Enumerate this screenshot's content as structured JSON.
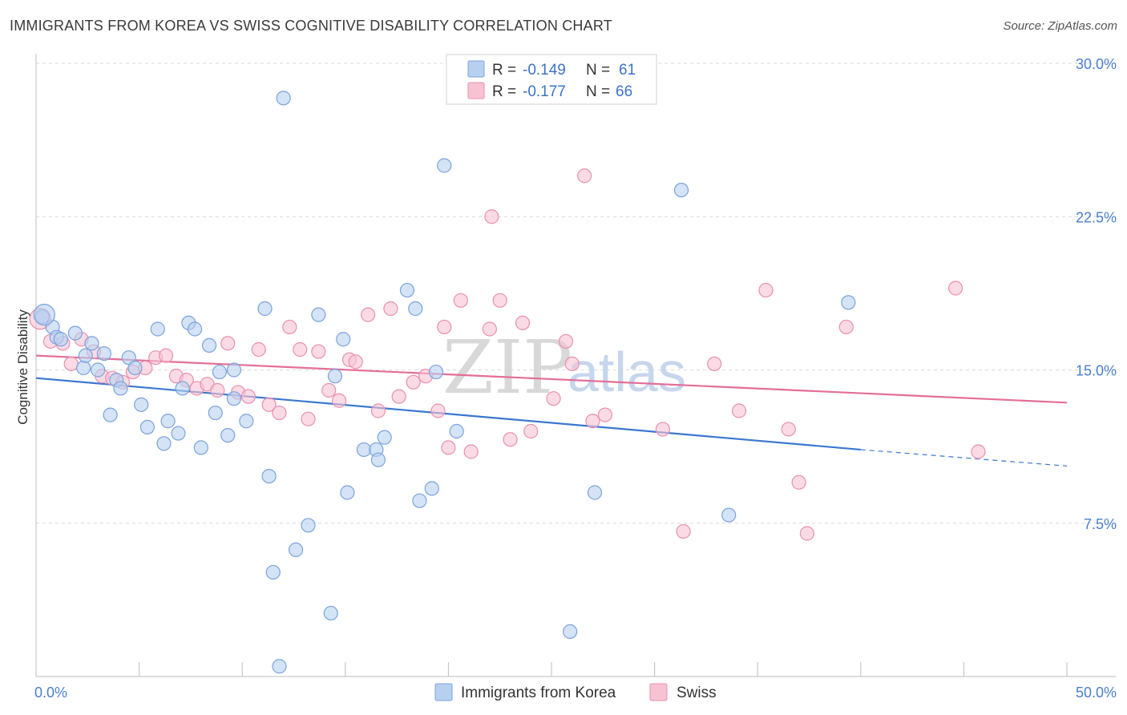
{
  "header": {
    "title": "IMMIGRANTS FROM KOREA VS SWISS COGNITIVE DISABILITY CORRELATION CHART",
    "source": "Source: ZipAtlas.com"
  },
  "watermark": {
    "zip": "ZIP",
    "atlas": "atlas"
  },
  "colors": {
    "blue_fill": "#b8d0f0",
    "blue_stroke": "#7aa3dc",
    "blue_line": "#3a78d0",
    "pink_fill": "#f7c3d3",
    "pink_stroke": "#ea8fae",
    "pink_line": "#e46e98",
    "axis_text": "#4a7fcf",
    "grid": "#d9d9d9"
  },
  "legend": {
    "rows": [
      {
        "r_label": "R = ",
        "r_value": "-0.149",
        "n_label": "N = ",
        "n_value": "61",
        "series": "korea"
      },
      {
        "r_label": "R = ",
        "r_value": "-0.177",
        "n_label": "N = ",
        "n_value": "66",
        "series": "swiss"
      }
    ]
  },
  "chart_data": {
    "type": "scatter",
    "title": "IMMIGRANTS FROM KOREA VS SWISS COGNITIVE DISABILITY CORRELATION CHART",
    "xlabel": "",
    "ylabel": "Cognitive Disability",
    "xlim": [
      0,
      50
    ],
    "ylim": [
      0,
      30
    ],
    "x_tick_labels": [
      "0.0%",
      "50.0%"
    ],
    "y_ticks": [
      7.5,
      15.0,
      22.5,
      30.0
    ],
    "y_tick_labels": [
      "7.5%",
      "15.0%",
      "22.5%",
      "30.0%"
    ],
    "grid": true,
    "legend_position": "top-center",
    "series": [
      {
        "name": "Immigrants from Korea",
        "key": "korea",
        "R": -0.149,
        "N": 61,
        "trend": {
          "x0": 0,
          "y0": 14.6,
          "x1": 40,
          "y1": 11.1,
          "dashed_to_x": 50,
          "dashed_to_y": 10.3
        },
        "points": [
          [
            0.3,
            17.6
          ],
          [
            0.8,
            17.1
          ],
          [
            1.0,
            16.6
          ],
          [
            1.9,
            16.8
          ],
          [
            1.2,
            16.5
          ],
          [
            2.3,
            15.1
          ],
          [
            2.4,
            15.7
          ],
          [
            2.7,
            16.3
          ],
          [
            3.0,
            15.0
          ],
          [
            3.3,
            15.8
          ],
          [
            3.6,
            12.8
          ],
          [
            3.9,
            14.5
          ],
          [
            4.1,
            14.1
          ],
          [
            4.5,
            15.6
          ],
          [
            4.8,
            15.1
          ],
          [
            5.1,
            13.3
          ],
          [
            5.4,
            12.2
          ],
          [
            5.9,
            17.0
          ],
          [
            6.2,
            11.4
          ],
          [
            6.4,
            12.5
          ],
          [
            6.9,
            11.9
          ],
          [
            7.1,
            14.1
          ],
          [
            7.4,
            17.3
          ],
          [
            7.7,
            17.0
          ],
          [
            8.0,
            11.2
          ],
          [
            8.4,
            16.2
          ],
          [
            8.7,
            12.9
          ],
          [
            8.9,
            14.9
          ],
          [
            9.3,
            11.8
          ],
          [
            9.6,
            13.6
          ],
          [
            9.6,
            15.0
          ],
          [
            10.2,
            12.5
          ],
          [
            11.1,
            18.0
          ],
          [
            11.3,
            9.8
          ],
          [
            11.5,
            5.1
          ],
          [
            11.8,
            0.5
          ],
          [
            12.0,
            28.3
          ],
          [
            12.6,
            6.2
          ],
          [
            13.2,
            7.4
          ],
          [
            13.7,
            17.7
          ],
          [
            14.3,
            3.1
          ],
          [
            14.5,
            14.7
          ],
          [
            14.9,
            16.5
          ],
          [
            15.1,
            9.0
          ],
          [
            15.9,
            11.1
          ],
          [
            16.5,
            11.1
          ],
          [
            16.6,
            10.6
          ],
          [
            16.9,
            11.7
          ],
          [
            18.0,
            18.9
          ],
          [
            18.4,
            18.0
          ],
          [
            18.6,
            8.6
          ],
          [
            19.2,
            9.2
          ],
          [
            19.4,
            14.9
          ],
          [
            19.8,
            25.0
          ],
          [
            20.4,
            12.0
          ],
          [
            25.9,
            2.2
          ],
          [
            27.1,
            9.0
          ],
          [
            31.3,
            23.8
          ],
          [
            33.6,
            7.9
          ],
          [
            39.4,
            18.3
          ],
          [
            0.4,
            17.7
          ]
        ]
      },
      {
        "name": "Swiss",
        "key": "swiss",
        "R": -0.177,
        "N": 66,
        "trend": {
          "x0": 0,
          "y0": 15.7,
          "x1": 50,
          "y1": 13.4
        },
        "points": [
          [
            0.2,
            17.5
          ],
          [
            0.7,
            16.4
          ],
          [
            1.3,
            16.3
          ],
          [
            1.7,
            15.3
          ],
          [
            2.2,
            16.5
          ],
          [
            2.8,
            15.9
          ],
          [
            3.2,
            14.7
          ],
          [
            3.7,
            14.6
          ],
          [
            4.2,
            14.4
          ],
          [
            4.7,
            14.9
          ],
          [
            5.3,
            15.1
          ],
          [
            5.8,
            15.6
          ],
          [
            6.3,
            15.7
          ],
          [
            6.8,
            14.7
          ],
          [
            7.3,
            14.5
          ],
          [
            7.8,
            14.1
          ],
          [
            8.3,
            14.3
          ],
          [
            8.8,
            14.0
          ],
          [
            9.3,
            16.3
          ],
          [
            9.8,
            13.9
          ],
          [
            10.3,
            13.7
          ],
          [
            10.8,
            16.0
          ],
          [
            11.3,
            13.3
          ],
          [
            11.8,
            12.9
          ],
          [
            12.3,
            17.1
          ],
          [
            12.8,
            16.0
          ],
          [
            13.2,
            12.6
          ],
          [
            13.7,
            15.9
          ],
          [
            14.2,
            14.0
          ],
          [
            14.7,
            13.5
          ],
          [
            15.2,
            15.5
          ],
          [
            15.5,
            15.4
          ],
          [
            16.1,
            17.7
          ],
          [
            16.6,
            13.0
          ],
          [
            17.2,
            18.0
          ],
          [
            17.6,
            13.7
          ],
          [
            18.3,
            14.4
          ],
          [
            18.9,
            14.7
          ],
          [
            19.5,
            13.0
          ],
          [
            19.8,
            17.1
          ],
          [
            20.0,
            11.2
          ],
          [
            20.6,
            18.4
          ],
          [
            21.1,
            11.0
          ],
          [
            22.0,
            17.0
          ],
          [
            22.1,
            22.5
          ],
          [
            22.5,
            18.4
          ],
          [
            23.0,
            11.6
          ],
          [
            23.6,
            17.3
          ],
          [
            24.0,
            12.0
          ],
          [
            25.1,
            13.6
          ],
          [
            25.7,
            16.4
          ],
          [
            26.0,
            15.3
          ],
          [
            26.6,
            24.5
          ],
          [
            27.0,
            12.5
          ],
          [
            27.6,
            12.8
          ],
          [
            30.4,
            12.1
          ],
          [
            31.4,
            7.1
          ],
          [
            32.9,
            15.3
          ],
          [
            34.1,
            13.0
          ],
          [
            35.4,
            18.9
          ],
          [
            36.5,
            12.1
          ],
          [
            37.0,
            9.5
          ],
          [
            37.4,
            7.0
          ],
          [
            39.3,
            17.1
          ],
          [
            44.6,
            19.0
          ],
          [
            45.7,
            11.0
          ]
        ]
      }
    ]
  },
  "bottom_legend": {
    "items": [
      {
        "label": "Immigrants from Korea",
        "series": "korea"
      },
      {
        "label": "Swiss",
        "series": "swiss"
      }
    ]
  }
}
